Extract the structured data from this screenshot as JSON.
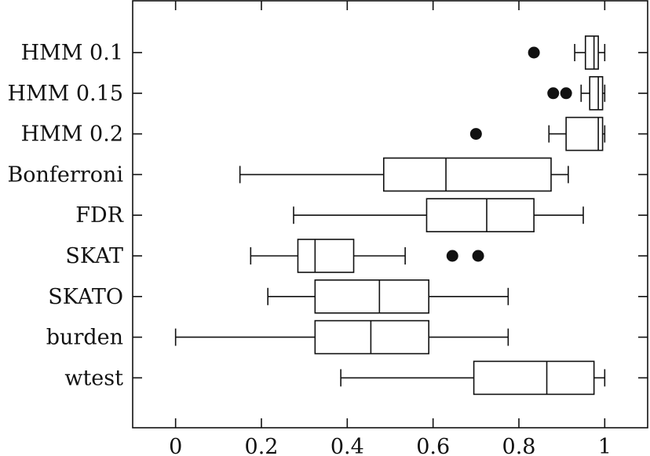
{
  "chart_data": {
    "type": "boxplot",
    "orientation": "horizontal",
    "xlim": [
      -0.1,
      1.1
    ],
    "xticks": [
      0,
      0.2,
      0.4,
      0.6,
      0.8,
      1
    ],
    "xtick_labels": [
      "0",
      "0.2",
      "0.4",
      "0.6",
      "0.8",
      "1"
    ],
    "grid": false,
    "xlabel": "",
    "ylabel": "",
    "title": "",
    "categories": [
      "HMM 0.1",
      "HMM 0.15",
      "HMM 0.2",
      "Bonferroni",
      "FDR",
      "SKAT",
      "SKATO",
      "burden",
      "wtest"
    ],
    "series": [
      {
        "whisker_low": 0.93,
        "q1": 0.955,
        "median": 0.975,
        "q3": 0.985,
        "whisker_high": 1.0,
        "outliers": [
          0.835
        ]
      },
      {
        "whisker_low": 0.945,
        "q1": 0.965,
        "median": 0.985,
        "q3": 0.995,
        "whisker_high": 1.0,
        "outliers": [
          0.88,
          0.91
        ]
      },
      {
        "whisker_low": 0.87,
        "q1": 0.91,
        "median": 0.985,
        "q3": 0.995,
        "whisker_high": 1.0,
        "outliers": [
          0.7
        ]
      },
      {
        "whisker_low": 0.15,
        "q1": 0.485,
        "median": 0.63,
        "q3": 0.875,
        "whisker_high": 0.915,
        "outliers": []
      },
      {
        "whisker_low": 0.275,
        "q1": 0.585,
        "median": 0.725,
        "q3": 0.835,
        "whisker_high": 0.95,
        "outliers": []
      },
      {
        "whisker_low": 0.175,
        "q1": 0.285,
        "median": 0.325,
        "q3": 0.415,
        "whisker_high": 0.535,
        "outliers": [
          0.645,
          0.705
        ]
      },
      {
        "whisker_low": 0.215,
        "q1": 0.325,
        "median": 0.475,
        "q3": 0.59,
        "whisker_high": 0.775,
        "outliers": []
      },
      {
        "whisker_low": 0.0,
        "q1": 0.325,
        "median": 0.455,
        "q3": 0.59,
        "whisker_high": 0.775,
        "outliers": []
      },
      {
        "whisker_low": 0.385,
        "q1": 0.695,
        "median": 0.865,
        "q3": 0.975,
        "whisker_high": 1.0,
        "outliers": []
      }
    ]
  }
}
